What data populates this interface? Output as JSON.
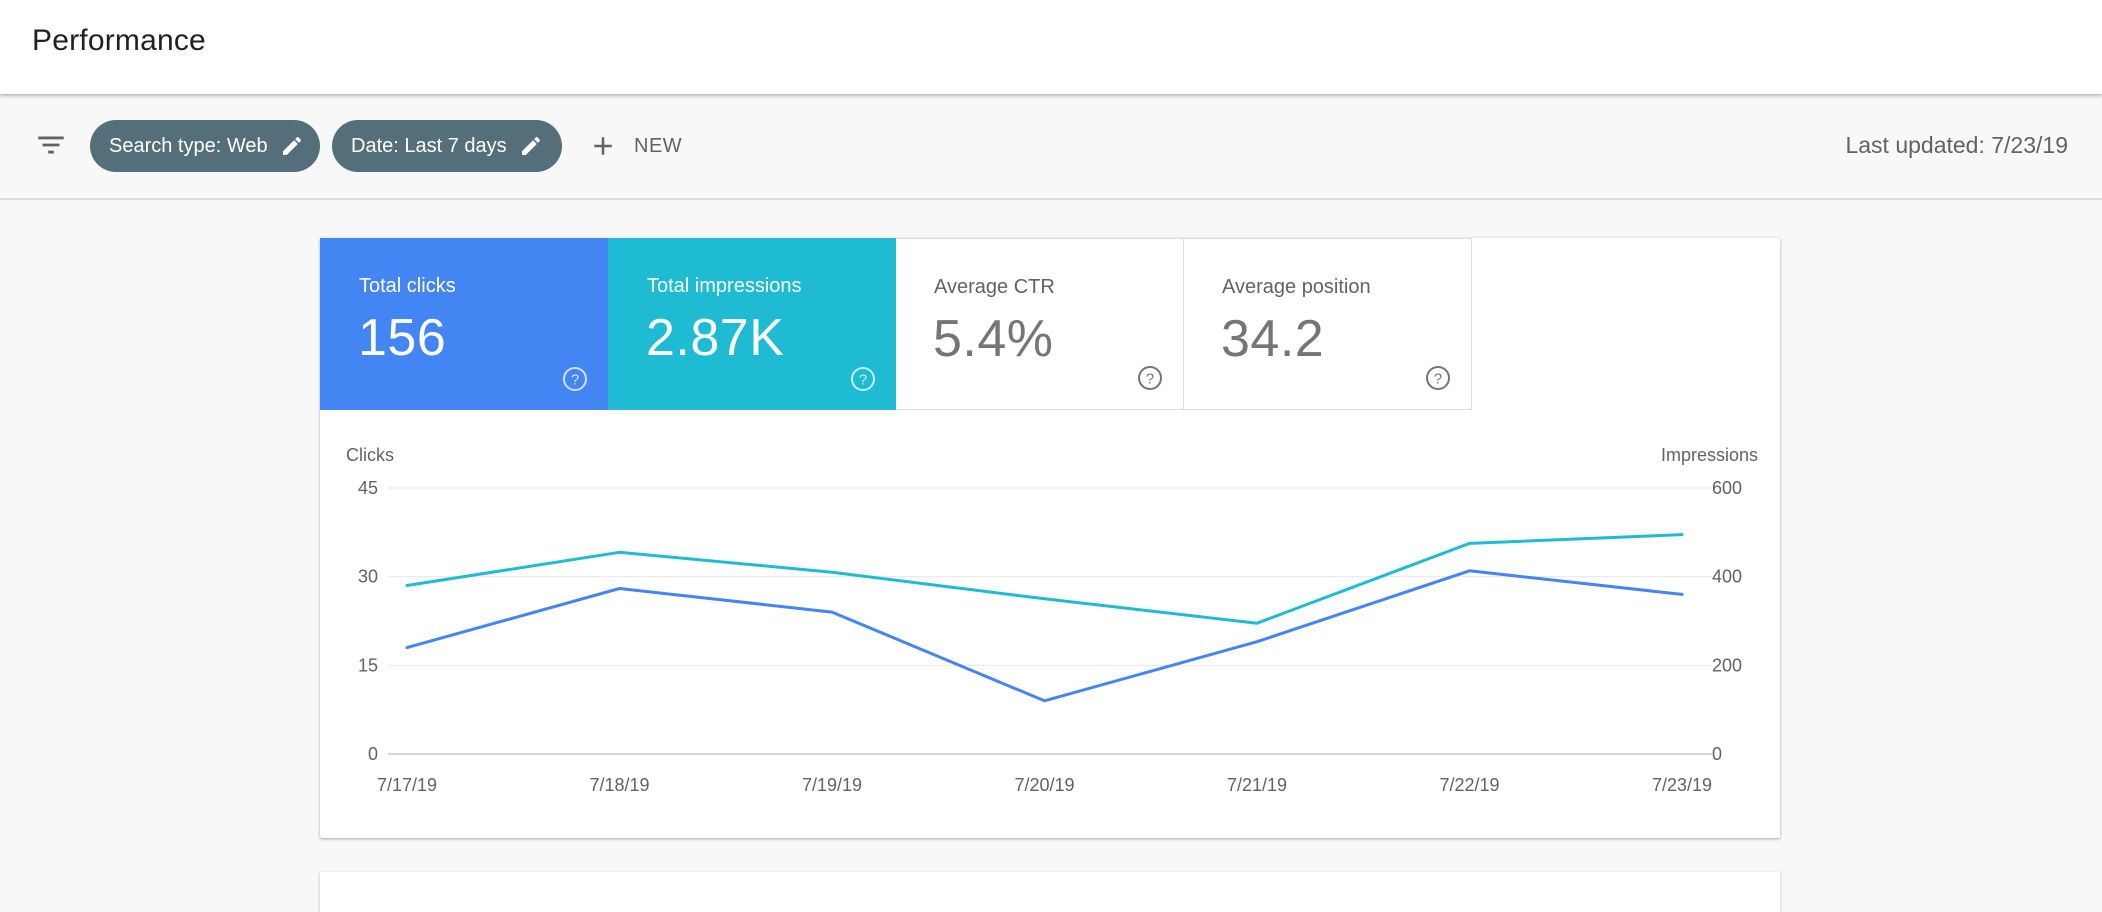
{
  "header": {
    "title": "Performance"
  },
  "filters": {
    "filter_icon": "filter-list-icon",
    "chips": [
      {
        "label": "Search type: Web",
        "icon": "pencil-icon"
      },
      {
        "label": "Date: Last 7 days",
        "icon": "pencil-icon"
      }
    ],
    "new_label": "NEW",
    "new_icon": "plus-icon",
    "last_updated": "Last updated: 7/23/19"
  },
  "metrics": [
    {
      "label": "Total clicks",
      "value": "156",
      "selected": true,
      "color": "#4485f4"
    },
    {
      "label": "Total impressions",
      "value": "2.87K",
      "selected": true,
      "color": "#1fbbd3"
    },
    {
      "label": "Average CTR",
      "value": "5.4%",
      "selected": false
    },
    {
      "label": "Average position",
      "value": "34.2",
      "selected": false
    }
  ],
  "chart_data": {
    "type": "line",
    "x": [
      "7/17/19",
      "7/18/19",
      "7/19/19",
      "7/20/19",
      "7/21/19",
      "7/22/19",
      "7/23/19"
    ],
    "series": [
      {
        "name": "Clicks",
        "axis": "left",
        "color": "#4485f4",
        "values": [
          18,
          28,
          24,
          9,
          19,
          31,
          27
        ]
      },
      {
        "name": "Impressions",
        "axis": "right",
        "color": "#1fbbd3",
        "values": [
          380,
          455,
          410,
          350,
          295,
          475,
          495
        ]
      }
    ],
    "ylabel_left": "Clicks",
    "ylabel_right": "Impressions",
    "yticks_left": [
      0,
      15,
      30,
      45
    ],
    "yticks_right": [
      0,
      200,
      400,
      600
    ],
    "ylim_left": [
      0,
      45
    ],
    "ylim_right": [
      0,
      600
    ],
    "grid": true
  }
}
